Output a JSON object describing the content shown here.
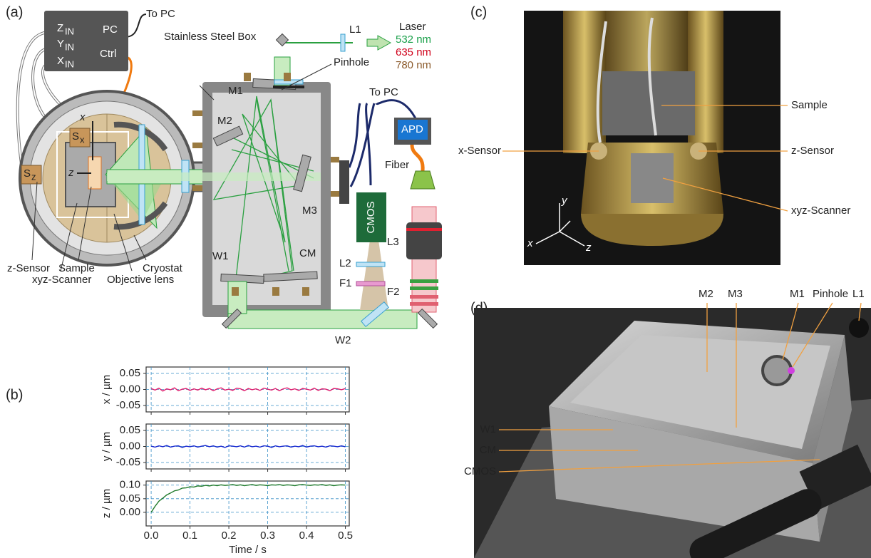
{
  "panels": [
    "(a)",
    "(b)",
    "(c)",
    "(d)"
  ],
  "a": {
    "to_pc_top": "To PC",
    "pc": "PC",
    "ctrl": "Ctrl",
    "z_in": [
      "Z",
      "IN"
    ],
    "y_in": [
      "Y",
      "IN"
    ],
    "x_in": [
      "X",
      "IN"
    ],
    "box": "Stainless Steel Box",
    "l1": "L1",
    "laser": "Laser",
    "wl": [
      "532 nm",
      "635 nm",
      "780 nm"
    ],
    "pinhole": "Pinhole",
    "m1": "M1",
    "m2": "M2",
    "m3": "M3",
    "cm": "CM",
    "w1": "W1",
    "w2": "W2",
    "to_pc_right": "To PC",
    "apd": "APD",
    "fiber": "Fiber",
    "cmos": "CMOS",
    "l2": "L2",
    "f1": "F1",
    "l3": "L3",
    "f2": "F2",
    "sx": [
      "S",
      "x"
    ],
    "sz": [
      "S",
      "z"
    ],
    "axis_x": "x",
    "axis_z": "z",
    "z_sensor": "z-Sensor",
    "sample": "Sample",
    "xyz_scanner": "xyz-Scanner",
    "cryostat": "Cryostat",
    "objective": "Objective lens"
  },
  "c": {
    "sample": "Sample",
    "x_sensor": "x-Sensor",
    "z_sensor": "z-Sensor",
    "xyz_scanner": "xyz-Scanner",
    "axes": [
      "y",
      "x",
      "z"
    ]
  },
  "d": {
    "labels": [
      "M2",
      "M3",
      "M1",
      "Pinhole",
      "L1",
      "W1",
      "CM",
      "CMOS"
    ]
  },
  "chart_data": [
    {
      "type": "line",
      "ylabel": "x / µm",
      "xlim": [
        -0.013,
        0.51
      ],
      "ylim": [
        -0.07,
        0.07
      ],
      "xticks": [
        0,
        0.1,
        0.2,
        0.3,
        0.4,
        0.5
      ],
      "yticks": [
        0.05,
        {
          "value": 0,
          "label": "0.00"
        },
        -0.05
      ],
      "grid": true,
      "x": [
        0,
        0.01,
        0.02,
        0.03,
        0.04,
        0.05,
        0.06,
        0.07,
        0.08,
        0.09,
        0.1,
        0.11,
        0.12,
        0.13,
        0.14,
        0.15,
        0.16,
        0.17,
        0.18,
        0.19,
        0.2,
        0.21,
        0.22,
        0.23,
        0.24,
        0.25,
        0.26,
        0.27,
        0.28,
        0.29,
        0.3,
        0.31,
        0.32,
        0.33,
        0.34,
        0.35,
        0.36,
        0.37,
        0.38,
        0.39,
        0.4,
        0.41,
        0.42,
        0.43,
        0.44,
        0.45,
        0.46,
        0.47,
        0.48,
        0.49,
        0.5
      ],
      "series": [
        {
          "color": "#e0206f",
          "values": [
            0.003,
            -0.002,
            0.004,
            -0.005,
            0.002,
            -0.001,
            0.005,
            -0.004,
            0.001,
            0.003,
            -0.003,
            0.002,
            -0.002,
            0.004,
            -0.001,
            0.003,
            -0.004,
            0.002,
            0.005,
            -0.002,
            0.001,
            -0.003,
            0.004,
            0.002,
            -0.004,
            0.003,
            -0.001,
            0.002,
            -0.003,
            0.004,
            0.001,
            -0.002,
            0.003,
            -0.004,
            0.002,
            0.005,
            -0.001,
            0.002,
            -0.003,
            0.003,
            0.001,
            -0.002,
            0.004,
            -0.003,
            0.002,
            0.001,
            -0.004,
            0.003,
            0.002,
            -0.001,
            0.003
          ]
        }
      ]
    },
    {
      "type": "line",
      "ylabel": "y / µm",
      "xlim": [
        -0.013,
        0.51
      ],
      "ylim": [
        -0.07,
        0.07
      ],
      "xticks": [
        0,
        0.1,
        0.2,
        0.3,
        0.4,
        0.5
      ],
      "yticks": [
        0.05,
        {
          "value": 0,
          "label": "0.00"
        },
        -0.05
      ],
      "grid": true,
      "x": [
        0,
        0.01,
        0.02,
        0.03,
        0.04,
        0.05,
        0.06,
        0.07,
        0.08,
        0.09,
        0.1,
        0.11,
        0.12,
        0.13,
        0.14,
        0.15,
        0.16,
        0.17,
        0.18,
        0.19,
        0.2,
        0.21,
        0.22,
        0.23,
        0.24,
        0.25,
        0.26,
        0.27,
        0.28,
        0.29,
        0.3,
        0.31,
        0.32,
        0.33,
        0.34,
        0.35,
        0.36,
        0.37,
        0.38,
        0.39,
        0.4,
        0.41,
        0.42,
        0.43,
        0.44,
        0.45,
        0.46,
        0.47,
        0.48,
        0.49,
        0.5
      ],
      "series": [
        {
          "color": "#1b2bd0",
          "values": [
            0.001,
            -0.002,
            0.002,
            -0.001,
            0.003,
            -0.002,
            0.001,
            0.002,
            -0.003,
            0.001,
            -0.001,
            0.002,
            -0.002,
            0.001,
            0.003,
            -0.001,
            0.002,
            -0.002,
            0.001,
            -0.003,
            0.002,
            0.001,
            -0.001,
            0.002,
            -0.002,
            0.003,
            -0.001,
            0.001,
            -0.002,
            0.002,
            0.001,
            -0.003,
            0.002,
            -0.001,
            0.001,
            0.002,
            -0.002,
            0.001,
            -0.001,
            0.003,
            -0.002,
            0.001,
            0.002,
            -0.001,
            0.001,
            -0.002,
            0.002,
            0.001,
            -0.001,
            0.002,
            -0.001
          ]
        }
      ]
    },
    {
      "type": "line",
      "ylabel": "z / µm",
      "xlabel": "Time / s",
      "xlim": [
        -0.013,
        0.51
      ],
      "ylim": [
        -0.05,
        0.115
      ],
      "xticks": [
        {
          "value": 0,
          "label": "0.0"
        },
        0.1,
        0.2,
        0.3,
        0.4,
        0.5
      ],
      "yticks": [
        {
          "value": 0.1,
          "label": "0.10"
        },
        0.05,
        {
          "value": 0,
          "label": "0.00"
        }
      ],
      "grid": true,
      "x": [
        0,
        0.01,
        0.02,
        0.03,
        0.04,
        0.05,
        0.06,
        0.07,
        0.08,
        0.09,
        0.1,
        0.11,
        0.12,
        0.13,
        0.14,
        0.15,
        0.16,
        0.17,
        0.18,
        0.19,
        0.2,
        0.21,
        0.22,
        0.23,
        0.24,
        0.25,
        0.26,
        0.27,
        0.28,
        0.29,
        0.3,
        0.31,
        0.32,
        0.33,
        0.34,
        0.35,
        0.36,
        0.37,
        0.38,
        0.39,
        0.4,
        0.41,
        0.42,
        0.43,
        0.44,
        0.45,
        0.46,
        0.47,
        0.48,
        0.49,
        0.5
      ],
      "series": [
        {
          "color": "#1f7a2a",
          "values": [
            0.0,
            0.022,
            0.041,
            0.052,
            0.064,
            0.071,
            0.079,
            0.082,
            0.089,
            0.09,
            0.094,
            0.093,
            0.097,
            0.096,
            0.099,
            0.097,
            0.1,
            0.098,
            0.101,
            0.099,
            0.1,
            0.102,
            0.099,
            0.101,
            0.098,
            0.1,
            0.102,
            0.099,
            0.101,
            0.1,
            0.098,
            0.101,
            0.1,
            0.102,
            0.099,
            0.101,
            0.1,
            0.098,
            0.101,
            0.102,
            0.1,
            0.099,
            0.101,
            0.1,
            0.102,
            0.099,
            0.101,
            0.098,
            0.1,
            0.101,
            0.1
          ]
        }
      ]
    }
  ]
}
